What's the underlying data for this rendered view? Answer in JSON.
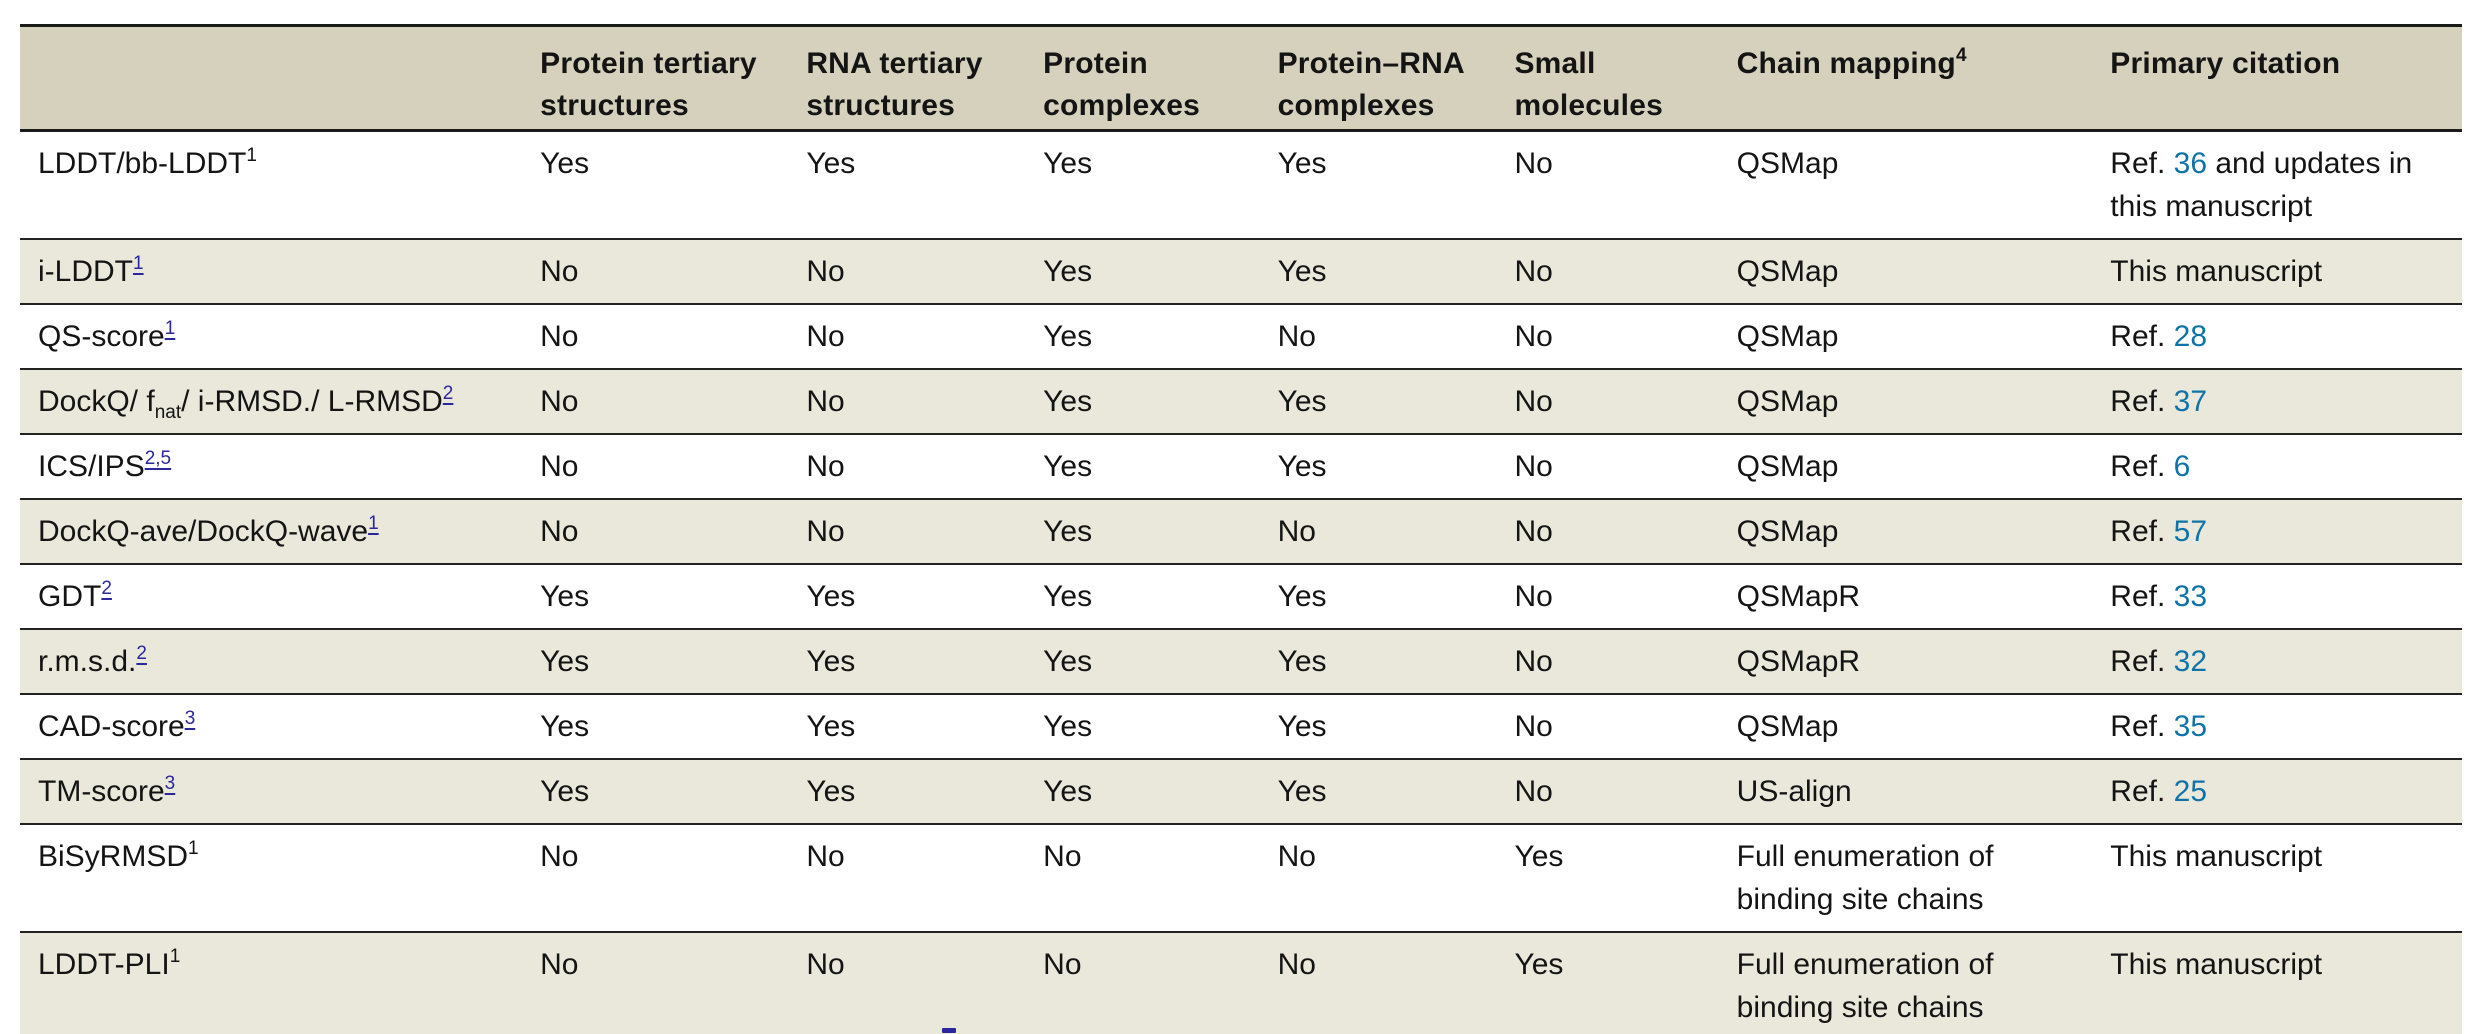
{
  "colors": {
    "header_bg": "#d5d1bc",
    "row_alt_bg": "#eae8db",
    "row_bg": "#ffffff",
    "border_dark": "#1b1b19",
    "text": "#141414",
    "ref_link_blue": "#0f73a8",
    "footnote_link_navy": "#2b279c"
  },
  "header": {
    "columns": [
      {
        "parts": [
          {
            "t": ""
          }
        ]
      },
      {
        "parts": [
          {
            "t": "Protein tertiary structures"
          }
        ]
      },
      {
        "parts": [
          {
            "t": "RNA tertiary structures"
          }
        ]
      },
      {
        "parts": [
          {
            "t": "Protein complexes"
          }
        ]
      },
      {
        "parts": [
          {
            "t": "Protein–RNA complexes"
          }
        ]
      },
      {
        "parts": [
          {
            "t": "Small molecules"
          }
        ]
      },
      {
        "parts": [
          {
            "t": "Chain mapping"
          },
          {
            "t": "4",
            "c": "sup"
          }
        ]
      },
      {
        "parts": [
          {
            "t": "Primary citation"
          }
        ]
      }
    ]
  },
  "rows": [
    {
      "metric": [
        {
          "t": "LDDT/bb-LDDT"
        },
        {
          "t": "1",
          "c": "sup"
        }
      ],
      "values": [
        "Yes",
        "Yes",
        "Yes",
        "Yes",
        "No"
      ],
      "chain_mapping": "QSMap",
      "citation": [
        {
          "t": "Ref. "
        },
        {
          "t": "36",
          "c": "link"
        },
        {
          "t": " and updates in this manuscript"
        }
      ],
      "tall": true
    },
    {
      "metric": [
        {
          "t": "i-LDDT"
        },
        {
          "t": "1",
          "c": "suplink"
        }
      ],
      "values": [
        "No",
        "No",
        "Yes",
        "Yes",
        "No"
      ],
      "chain_mapping": "QSMap",
      "citation": [
        {
          "t": "This manuscript"
        }
      ],
      "tall": false
    },
    {
      "metric": [
        {
          "t": "QS-score"
        },
        {
          "t": "1",
          "c": "suplink"
        }
      ],
      "values": [
        "No",
        "No",
        "Yes",
        "No",
        "No"
      ],
      "chain_mapping": "QSMap",
      "citation": [
        {
          "t": "Ref. "
        },
        {
          "t": "28",
          "c": "link"
        }
      ],
      "tall": false
    },
    {
      "metric": [
        {
          "t": "DockQ/ f"
        },
        {
          "t": "nat",
          "c": "sub"
        },
        {
          "t": "/ i-RMSD./ L-RMSD"
        },
        {
          "t": "2",
          "c": "suplink"
        }
      ],
      "values": [
        "No",
        "No",
        "Yes",
        "Yes",
        "No"
      ],
      "chain_mapping": "QSMap",
      "citation": [
        {
          "t": "Ref. "
        },
        {
          "t": "37",
          "c": "link"
        }
      ],
      "tall": false
    },
    {
      "metric": [
        {
          "t": "ICS/IPS"
        },
        {
          "t": "2,5",
          "c": "suplink"
        }
      ],
      "values": [
        "No",
        "No",
        "Yes",
        "Yes",
        "No"
      ],
      "chain_mapping": "QSMap",
      "citation": [
        {
          "t": "Ref. "
        },
        {
          "t": "6",
          "c": "link"
        }
      ],
      "tall": false
    },
    {
      "metric": [
        {
          "t": "DockQ-ave/DockQ-wave"
        },
        {
          "t": "1",
          "c": "suplink"
        }
      ],
      "values": [
        "No",
        "No",
        "Yes",
        "No",
        "No"
      ],
      "chain_mapping": "QSMap",
      "citation": [
        {
          "t": "Ref. "
        },
        {
          "t": "57",
          "c": "link"
        }
      ],
      "tall": false
    },
    {
      "metric": [
        {
          "t": "GDT"
        },
        {
          "t": "2",
          "c": "suplink"
        }
      ],
      "values": [
        "Yes",
        "Yes",
        "Yes",
        "Yes",
        "No"
      ],
      "chain_mapping": "QSMapR",
      "citation": [
        {
          "t": "Ref. "
        },
        {
          "t": "33",
          "c": "link"
        }
      ],
      "tall": false
    },
    {
      "metric": [
        {
          "t": "r.m.s.d."
        },
        {
          "t": "2",
          "c": "suplink"
        }
      ],
      "values": [
        "Yes",
        "Yes",
        "Yes",
        "Yes",
        "No"
      ],
      "chain_mapping": "QSMapR",
      "citation": [
        {
          "t": "Ref. "
        },
        {
          "t": "32",
          "c": "link"
        }
      ],
      "tall": false
    },
    {
      "metric": [
        {
          "t": "CAD-score"
        },
        {
          "t": "3",
          "c": "suplink"
        }
      ],
      "values": [
        "Yes",
        "Yes",
        "Yes",
        "Yes",
        "No"
      ],
      "chain_mapping": "QSMap",
      "citation": [
        {
          "t": "Ref. "
        },
        {
          "t": "35",
          "c": "link"
        }
      ],
      "tall": false
    },
    {
      "metric": [
        {
          "t": "TM-score"
        },
        {
          "t": "3",
          "c": "suplink"
        }
      ],
      "values": [
        "Yes",
        "Yes",
        "Yes",
        "Yes",
        "No"
      ],
      "chain_mapping": "US-align",
      "citation": [
        {
          "t": "Ref. "
        },
        {
          "t": "25",
          "c": "link"
        }
      ],
      "tall": false
    },
    {
      "metric": [
        {
          "t": "BiSyRMSD"
        },
        {
          "t": "1",
          "c": "sup"
        }
      ],
      "values": [
        "No",
        "No",
        "No",
        "No",
        "Yes"
      ],
      "chain_mapping": "Full enumeration of binding site chains",
      "citation": [
        {
          "t": "This manuscript"
        }
      ],
      "tall": true
    },
    {
      "metric": [
        {
          "t": "LDDT-PLI"
        },
        {
          "t": "1",
          "c": "sup"
        }
      ],
      "values": [
        "No",
        "No",
        "No",
        "No",
        "Yes"
      ],
      "chain_mapping": "Full enumeration of binding site chains",
      "citation": [
        {
          "t": "This manuscript"
        }
      ],
      "tall": true
    }
  ]
}
